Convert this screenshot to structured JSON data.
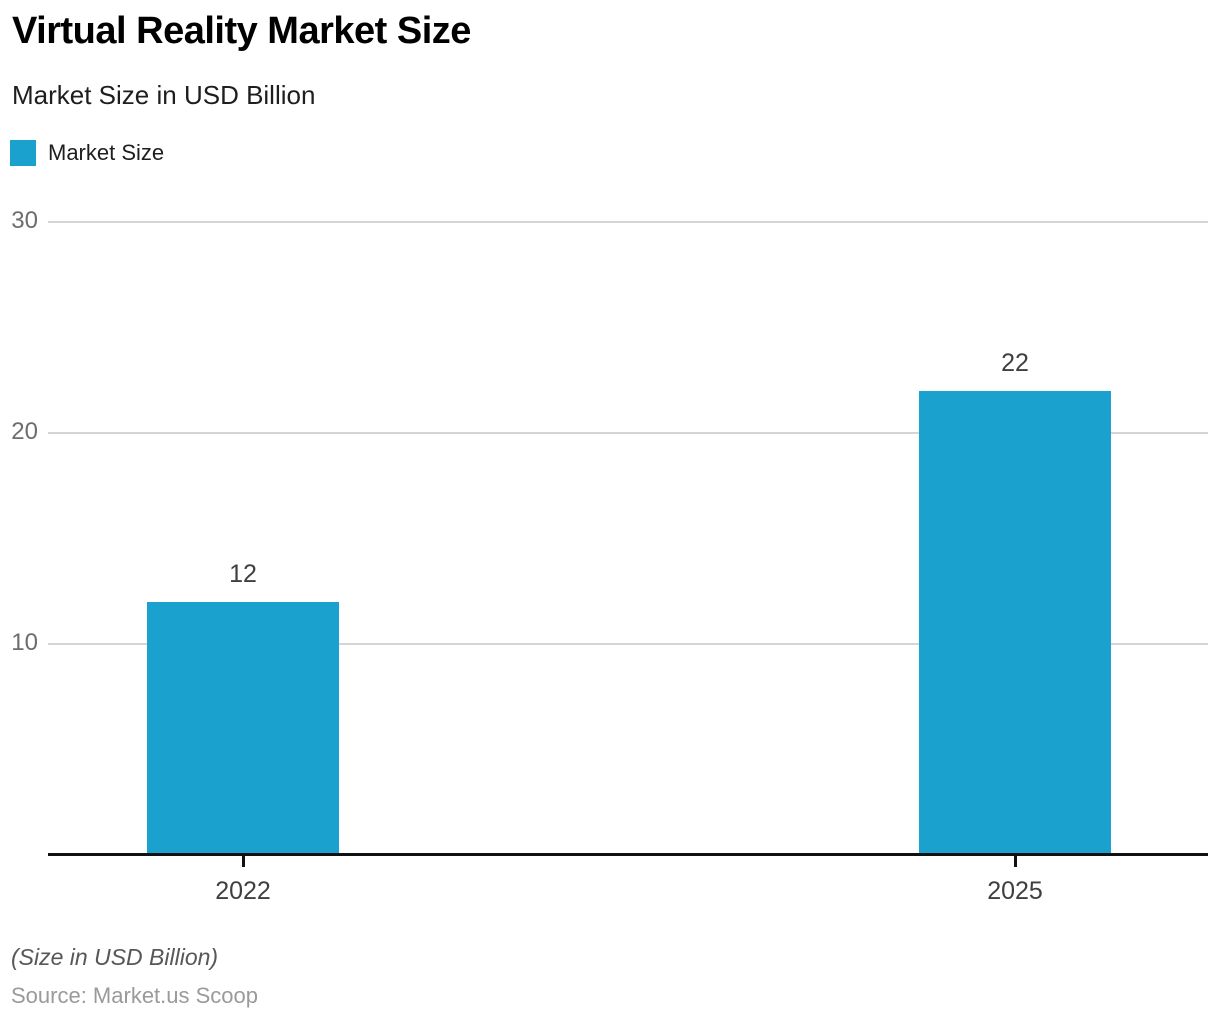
{
  "header": {
    "title": "Virtual Reality Market Size",
    "subtitle": "Market Size in USD Billion"
  },
  "legend": {
    "items": [
      {
        "label": "Market Size",
        "color": "#1aa1ce"
      }
    ]
  },
  "chart_data": {
    "type": "bar",
    "title": "Virtual Reality Market Size",
    "subtitle": "Market Size in USD Billion",
    "categories": [
      "2022",
      "2025"
    ],
    "series": [
      {
        "name": "Market Size",
        "values": [
          12,
          22
        ]
      }
    ],
    "data_labels": [
      "12",
      "22"
    ],
    "xlabel": "",
    "ylabel": "",
    "yticks": [
      10,
      20,
      30
    ],
    "ylim": [
      0,
      30
    ],
    "grid": "horizontal",
    "legend_position": "top-left",
    "bar_color": "#1aa1ce"
  },
  "footer": {
    "note": "(Size in USD Billion)",
    "source": "Source: Market.us Scoop"
  },
  "colors": {
    "accent": "#1aa1ce",
    "title": "#000000",
    "subtitle": "#1e1e1e",
    "ticktext": "#6d6d6d",
    "valuetext": "#3f3f3f",
    "notetext": "#575757",
    "sourcetext": "#9a9a9a",
    "grid": "#d5d5d5",
    "axis": "#111111",
    "background": "#ffffff"
  }
}
